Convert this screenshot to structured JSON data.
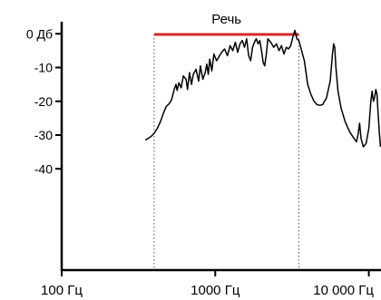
{
  "chart_data": {
    "type": "line",
    "title": "",
    "xlabel": "",
    "ylabel": "",
    "x_scale": "log",
    "xlim": [
      100,
      12000
    ],
    "ylim": [
      -70,
      10
    ],
    "x_ticks": [
      {
        "value": 100,
        "label": "100 Гц"
      },
      {
        "value": 1000,
        "label": "1000 Гц"
      },
      {
        "value": 10000,
        "label": "10 000 Гц"
      }
    ],
    "y_ticks": [
      {
        "value": 0,
        "label": "0 Дб"
      },
      {
        "value": -10,
        "label": "-10"
      },
      {
        "value": -20,
        "label": "-20"
      },
      {
        "value": -30,
        "label": "-30"
      },
      {
        "value": -40,
        "label": "-40"
      }
    ],
    "band": {
      "label": "Речь",
      "from": 400,
      "to": 3500,
      "color": "#d62728"
    },
    "grid": false,
    "series": [
      {
        "color": "#000000",
        "points": [
          [
            350,
            -31.5
          ],
          [
            380,
            -30.5
          ],
          [
            400,
            -29.5
          ],
          [
            420,
            -28
          ],
          [
            440,
            -26
          ],
          [
            460,
            -23.5
          ],
          [
            480,
            -21.5
          ],
          [
            500,
            -20.8
          ],
          [
            520,
            -19.5
          ],
          [
            540,
            -16.5
          ],
          [
            555,
            -15
          ],
          [
            565,
            -16.8
          ],
          [
            580,
            -14.5
          ],
          [
            600,
            -16
          ],
          [
            620,
            -12.5
          ],
          [
            645,
            -13.5
          ],
          [
            660,
            -16.5
          ],
          [
            680,
            -11.5
          ],
          [
            700,
            -15
          ],
          [
            720,
            -12
          ],
          [
            750,
            -10.5
          ],
          [
            780,
            -14
          ],
          [
            800,
            -9.5
          ],
          [
            830,
            -13.5
          ],
          [
            860,
            -11.5
          ],
          [
            880,
            -9
          ],
          [
            900,
            -12
          ],
          [
            920,
            -7.5
          ],
          [
            950,
            -11
          ],
          [
            980,
            -6
          ],
          [
            1020,
            -8
          ],
          [
            1100,
            -5.5
          ],
          [
            1150,
            -4.5
          ],
          [
            1200,
            -6.5
          ],
          [
            1250,
            -3.5
          ],
          [
            1300,
            -5
          ],
          [
            1350,
            -2.5
          ],
          [
            1400,
            -5.5
          ],
          [
            1450,
            -3
          ],
          [
            1500,
            -2
          ],
          [
            1550,
            -4
          ],
          [
            1600,
            -1.5
          ],
          [
            1650,
            -6.5
          ],
          [
            1700,
            -8
          ],
          [
            1750,
            -4
          ],
          [
            1800,
            -2.5
          ],
          [
            1850,
            -1.5
          ],
          [
            1900,
            -3
          ],
          [
            1950,
            -2
          ],
          [
            2000,
            -5
          ],
          [
            2050,
            -8.5
          ],
          [
            2100,
            -9.5
          ],
          [
            2150,
            -6
          ],
          [
            2200,
            -1.5
          ],
          [
            2300,
            -2.5
          ],
          [
            2400,
            -4
          ],
          [
            2500,
            -3
          ],
          [
            2600,
            -5
          ],
          [
            2700,
            -3.5
          ],
          [
            2800,
            -6
          ],
          [
            2900,
            -4
          ],
          [
            3000,
            -4.5
          ],
          [
            3100,
            -3.5
          ],
          [
            3200,
            -1
          ],
          [
            3300,
            1
          ],
          [
            3400,
            -1.5
          ],
          [
            3500,
            -2
          ],
          [
            3600,
            -4
          ],
          [
            3700,
            -6
          ],
          [
            3800,
            -8
          ],
          [
            4000,
            -15
          ],
          [
            4200,
            -18
          ],
          [
            4400,
            -20
          ],
          [
            4600,
            -21
          ],
          [
            4800,
            -21.2
          ],
          [
            5000,
            -21
          ],
          [
            5300,
            -19
          ],
          [
            5600,
            -14
          ],
          [
            5800,
            -6
          ],
          [
            5900,
            -3
          ],
          [
            6000,
            -4
          ],
          [
            6100,
            -10
          ],
          [
            6300,
            -17
          ],
          [
            6600,
            -22
          ],
          [
            7000,
            -26
          ],
          [
            7500,
            -29
          ],
          [
            8000,
            -31
          ],
          [
            8300,
            -32
          ],
          [
            8500,
            -30
          ],
          [
            8700,
            -26.5
          ],
          [
            8900,
            -31
          ],
          [
            9200,
            -33.5
          ],
          [
            9600,
            -32.5
          ],
          [
            10000,
            -28
          ],
          [
            10300,
            -20
          ],
          [
            10500,
            -17
          ],
          [
            10700,
            -20
          ],
          [
            10900,
            -19
          ],
          [
            11100,
            -16.5
          ],
          [
            11300,
            -18
          ],
          [
            11500,
            -24
          ],
          [
            11700,
            -29
          ],
          [
            11900,
            -33.5
          ]
        ]
      }
    ]
  }
}
